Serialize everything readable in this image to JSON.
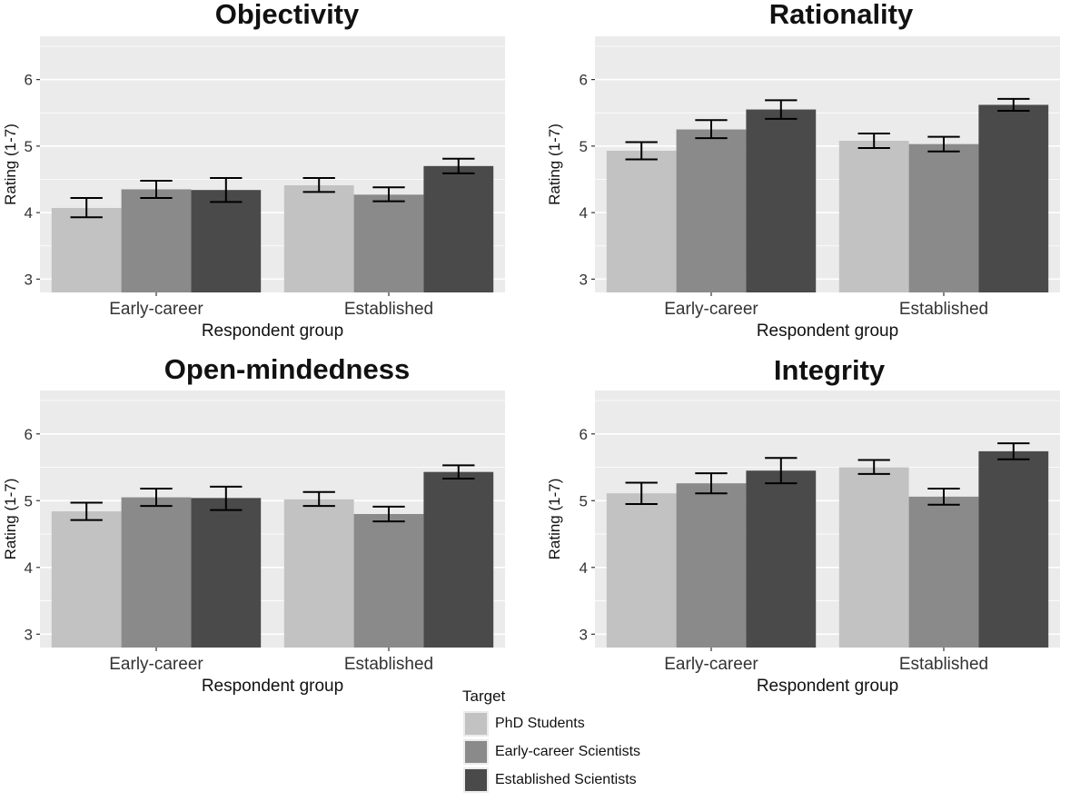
{
  "chart_data": [
    {
      "type": "bar",
      "title": "Objectivity",
      "xlabel": "Respondent group",
      "ylabel": "Rating (1-7)",
      "categories": [
        "Early-career",
        "Established"
      ],
      "ylim": [
        2.8,
        6.65
      ],
      "yticks": [
        3,
        4,
        5,
        6
      ],
      "series": [
        {
          "name": "PhD Students",
          "values": [
            4.07,
            4.41
          ],
          "ci": [
            [
              3.93,
              4.22
            ],
            [
              4.31,
              4.52
            ]
          ]
        },
        {
          "name": "Early-career Scientists",
          "values": [
            4.35,
            4.27
          ],
          "ci": [
            [
              4.22,
              4.48
            ],
            [
              4.17,
              4.38
            ]
          ]
        },
        {
          "name": "Established Scientists",
          "values": [
            4.34,
            4.7
          ],
          "ci": [
            [
              4.16,
              4.52
            ],
            [
              4.59,
              4.81
            ]
          ]
        }
      ]
    },
    {
      "type": "bar",
      "title": "Rationality",
      "xlabel": "Respondent group",
      "ylabel": "Rating (1-7)",
      "categories": [
        "Early-career",
        "Established"
      ],
      "ylim": [
        2.8,
        6.65
      ],
      "yticks": [
        3,
        4,
        5,
        6
      ],
      "series": [
        {
          "name": "PhD Students",
          "values": [
            4.93,
            5.08
          ],
          "ci": [
            [
              4.8,
              5.06
            ],
            [
              4.97,
              5.19
            ]
          ]
        },
        {
          "name": "Early-career Scientists",
          "values": [
            5.25,
            5.03
          ],
          "ci": [
            [
              5.12,
              5.39
            ],
            [
              4.92,
              5.14
            ]
          ]
        },
        {
          "name": "Established Scientists",
          "values": [
            5.55,
            5.62
          ],
          "ci": [
            [
              5.41,
              5.69
            ],
            [
              5.53,
              5.71
            ]
          ]
        }
      ]
    },
    {
      "type": "bar",
      "title": "Open-mindedness",
      "xlabel": "Respondent group",
      "ylabel": "Rating (1-7)",
      "categories": [
        "Early-career",
        "Established"
      ],
      "ylim": [
        2.8,
        6.65
      ],
      "yticks": [
        3,
        4,
        5,
        6
      ],
      "series": [
        {
          "name": "PhD Students",
          "values": [
            4.84,
            5.02
          ],
          "ci": [
            [
              4.71,
              4.97
            ],
            [
              4.92,
              5.13
            ]
          ]
        },
        {
          "name": "Early-career Scientists",
          "values": [
            5.05,
            4.8
          ],
          "ci": [
            [
              4.92,
              5.18
            ],
            [
              4.69,
              4.91
            ]
          ]
        },
        {
          "name": "Established Scientists",
          "values": [
            5.04,
            5.43
          ],
          "ci": [
            [
              4.86,
              5.21
            ],
            [
              5.33,
              5.53
            ]
          ]
        }
      ]
    },
    {
      "type": "bar",
      "title": "Integrity",
      "xlabel": "Respondent group",
      "ylabel": "Rating (1-7)",
      "categories": [
        "Early-career",
        "Established"
      ],
      "ylim": [
        2.8,
        6.65
      ],
      "yticks": [
        3,
        4,
        5,
        6
      ],
      "series": [
        {
          "name": "PhD Students",
          "values": [
            5.11,
            5.5
          ],
          "ci": [
            [
              4.95,
              5.27
            ],
            [
              5.4,
              5.61
            ]
          ]
        },
        {
          "name": "Early-career Scientists",
          "values": [
            5.26,
            5.06
          ],
          "ci": [
            [
              5.11,
              5.41
            ],
            [
              4.94,
              5.18
            ]
          ]
        },
        {
          "name": "Established Scientists",
          "values": [
            5.45,
            5.74
          ],
          "ci": [
            [
              5.26,
              5.64
            ],
            [
              5.62,
              5.86
            ]
          ]
        }
      ]
    }
  ],
  "legend": {
    "title": "Target",
    "items": [
      {
        "label": "PhD Students",
        "color": "#c2c2c2"
      },
      {
        "label": "Early-career Scientists",
        "color": "#8a8a8a"
      },
      {
        "label": "Established Scientists",
        "color": "#4a4a4a"
      }
    ]
  },
  "colors": {
    "panel_background": "#ebebeb",
    "gridline": "#ffffff",
    "text": "#111111",
    "errorbar": "#000000"
  }
}
